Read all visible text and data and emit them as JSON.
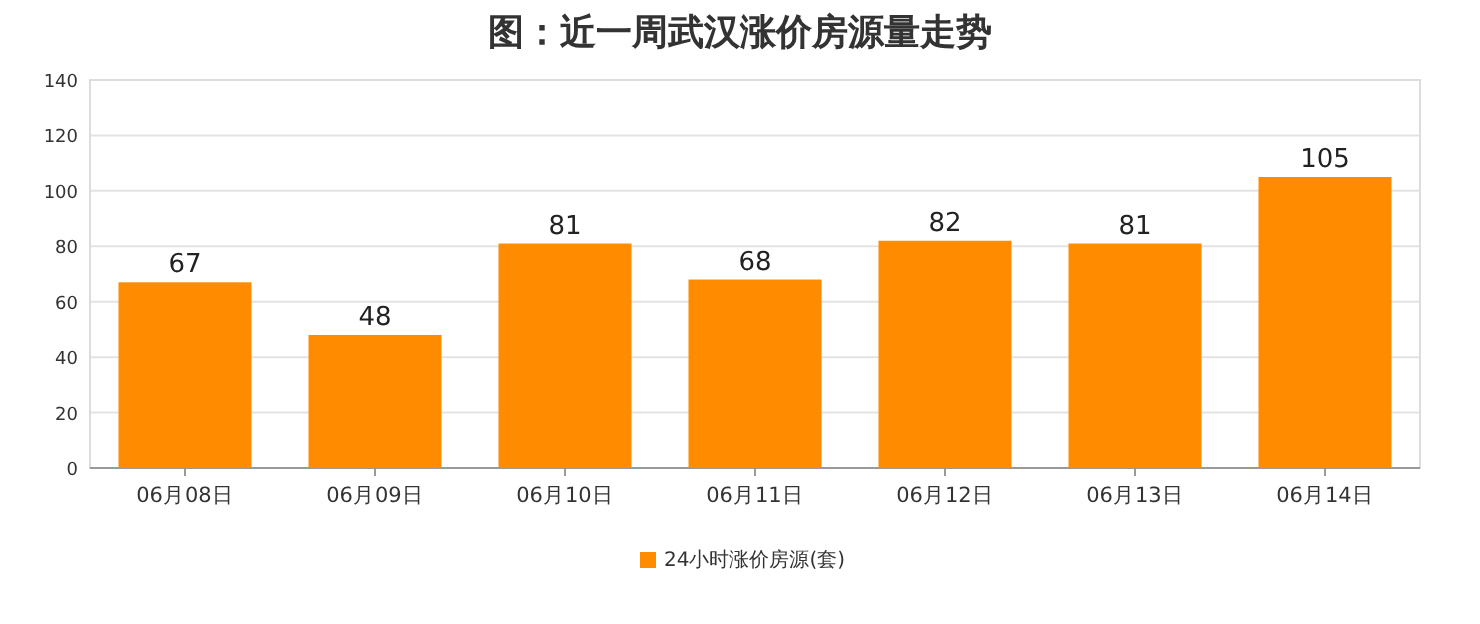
{
  "chart_data": {
    "type": "bar",
    "title": "图：近一周武汉涨价房源量走势",
    "categories": [
      "06月08日",
      "06月09日",
      "06月10日",
      "06月11日",
      "06月12日",
      "06月13日",
      "06月14日"
    ],
    "series": [
      {
        "name": "24小时涨价房源(套)",
        "color": "#ff8c00",
        "values": [
          67,
          48,
          81,
          68,
          82,
          81,
          105
        ]
      }
    ],
    "ylim": [
      0,
      140
    ],
    "yticks": [
      0,
      20,
      40,
      60,
      80,
      100,
      120,
      140
    ],
    "grid": "y",
    "legend": "bottom",
    "data_labels": true
  }
}
